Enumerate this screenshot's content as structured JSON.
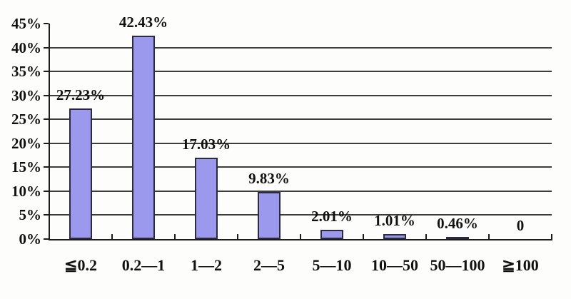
{
  "chart_data": {
    "type": "bar",
    "title": "",
    "xlabel": "",
    "ylabel": "",
    "categories": [
      "≦0.2",
      "0.2—1",
      "1—2",
      "2—5",
      "5—10",
      "10—50",
      "50—100",
      "≧100"
    ],
    "values": [
      27.23,
      42.43,
      17.03,
      9.83,
      2.01,
      1.01,
      0.46,
      0
    ],
    "data_labels": [
      "27.23%",
      "42.43%",
      "17.03%",
      "9.83%",
      "2.01%",
      "1.01%",
      "0.46%",
      "0"
    ],
    "y_axis": {
      "min": 0,
      "max": 45,
      "step": 5,
      "tick_labels": [
        "0%",
        "5%",
        "10%",
        "15%",
        "20%",
        "25%",
        "30%",
        "35%",
        "40%",
        "45%"
      ]
    },
    "grid": true,
    "legend": false,
    "colors": {
      "bar_fill": "#9b99ee",
      "bar_border": "#2b2b40",
      "gridline": "#3d3d3d",
      "axis": "#1c1c1c",
      "text": "#111111",
      "background": "#fdfdfb"
    }
  }
}
